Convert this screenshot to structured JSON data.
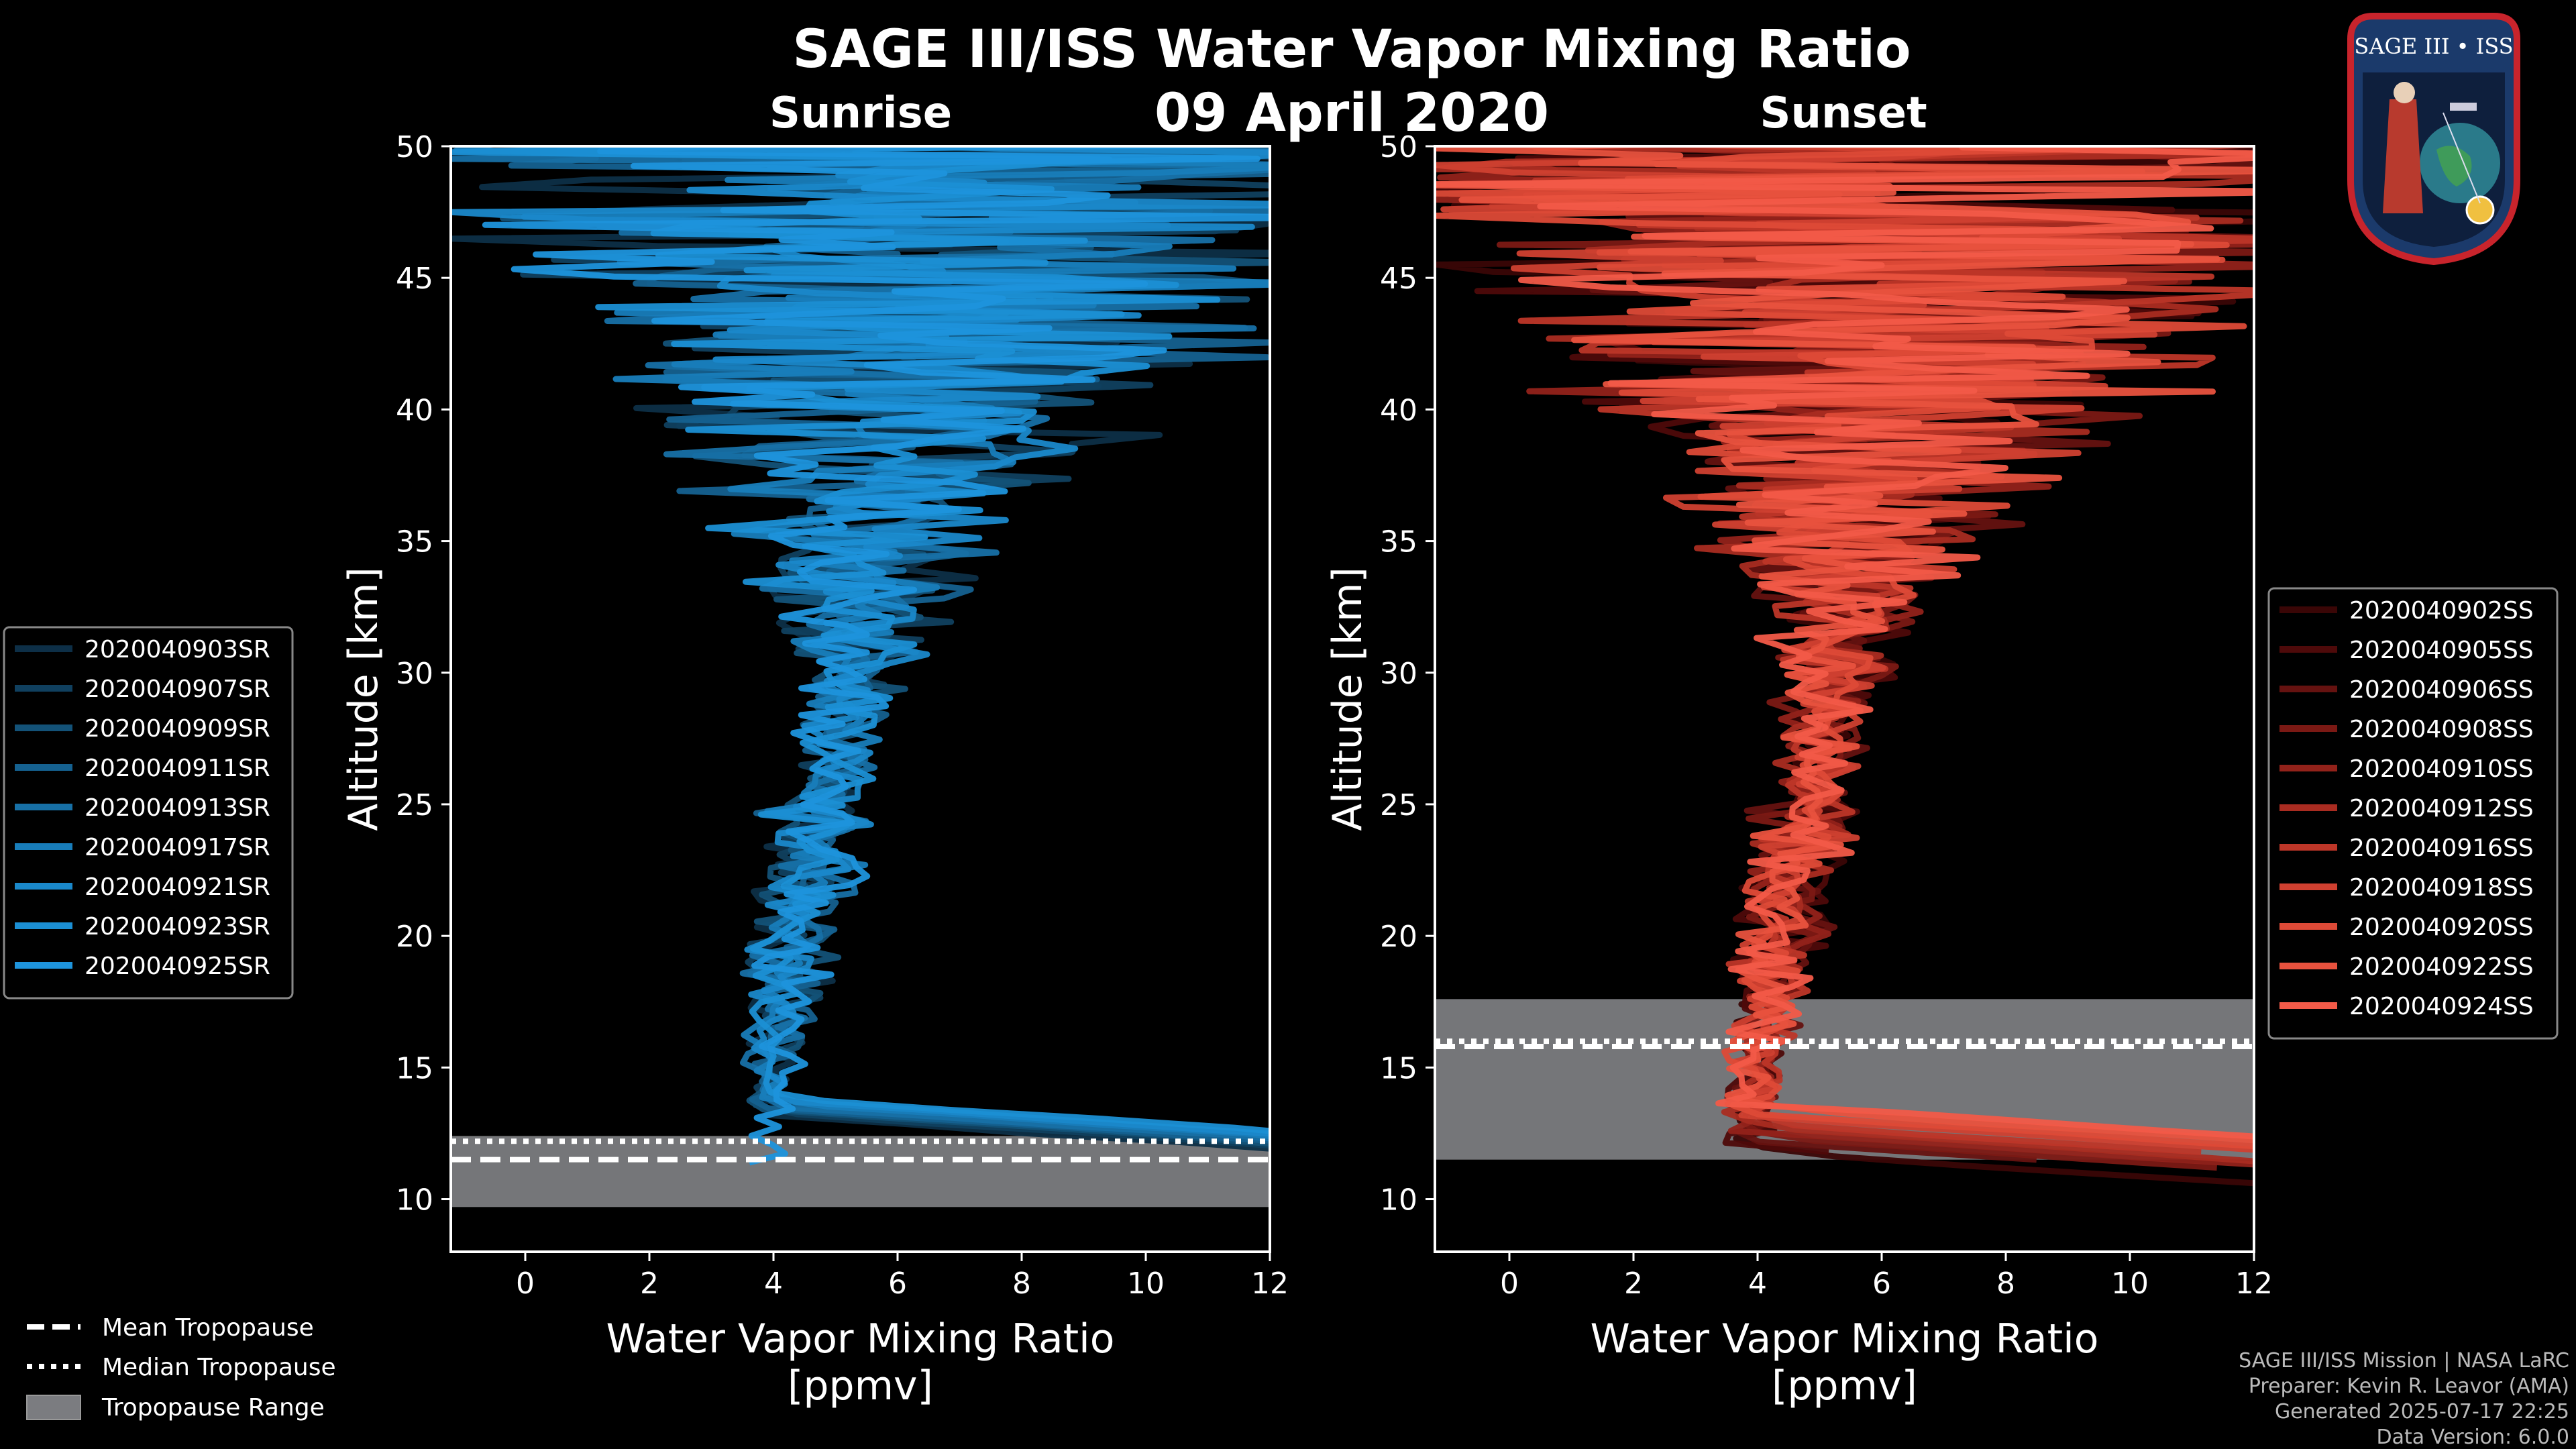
{
  "header": {
    "title": "SAGE III/ISS Water Vapor Mixing Ratio",
    "date": "09 April 2020"
  },
  "logo": {
    "label": "SAGE III • ISS"
  },
  "footer": {
    "line1": "SAGE III/ISS Mission | NASA LaRC",
    "line2": "Preparer: Kevin R. Leavor (AMA)",
    "line3": "Generated 2025-07-17 22:25",
    "line4": "Data Version: 6.0.0"
  },
  "tropo_legend": {
    "mean": "Mean Tropopause",
    "median": "Median Tropopause",
    "range": "Tropopause Range"
  },
  "colors": {
    "sunrise": "#1e90d8",
    "sunset": "#f25a48",
    "range": "#7b7c80"
  },
  "chart_data": [
    {
      "type": "line",
      "id": "sunrise",
      "title": "Sunrise",
      "xlabel": "Water Vapor Mixing Ratio\n[ppmv]",
      "ylabel": "Altitude [km]",
      "xlim": [
        -1.2,
        12
      ],
      "ylim": [
        8,
        50
      ],
      "xticks": [
        0,
        2,
        4,
        6,
        8,
        10,
        12
      ],
      "yticks": [
        10,
        15,
        20,
        25,
        30,
        35,
        40,
        45,
        50
      ],
      "legend_position": "left",
      "tropopause": {
        "mean": 11.5,
        "median": 12.2,
        "range": [
          9.7,
          12.4
        ]
      },
      "series": [
        {
          "name": "2020040903SR",
          "color": "#0d2f47"
        },
        {
          "name": "2020040907SR",
          "color": "#10405f"
        },
        {
          "name": "2020040909SR",
          "color": "#135278"
        },
        {
          "name": "2020040911SR",
          "color": "#156190"
        },
        {
          "name": "2020040913SR",
          "color": "#1770a6"
        },
        {
          "name": "2020040917SR",
          "color": "#187dba"
        },
        {
          "name": "2020040921SR",
          "color": "#1a88ca"
        },
        {
          "name": "2020040923SR",
          "color": "#1b8fd4"
        },
        {
          "name": "2020040925SR",
          "color": "#1e94dc"
        }
      ]
    },
    {
      "type": "line",
      "id": "sunset",
      "title": "Sunset",
      "xlabel": "Water Vapor Mixing Ratio\n[ppmv]",
      "ylabel": "Altitude [km]",
      "xlim": [
        -1.2,
        12
      ],
      "ylim": [
        8,
        50
      ],
      "xticks": [
        0,
        2,
        4,
        6,
        8,
        10,
        12
      ],
      "yticks": [
        10,
        15,
        20,
        25,
        30,
        35,
        40,
        45,
        50
      ],
      "legend_position": "right",
      "tropopause": {
        "mean": 15.8,
        "median": 16.0,
        "range": [
          11.5,
          17.6
        ]
      },
      "series": [
        {
          "name": "2020040902SS",
          "color": "#3a0606"
        },
        {
          "name": "2020040905SS",
          "color": "#4e0a0a"
        },
        {
          "name": "2020040906SS",
          "color": "#651210"
        },
        {
          "name": "2020040908SS",
          "color": "#7b1914"
        },
        {
          "name": "2020040910SS",
          "color": "#92221a"
        },
        {
          "name": "2020040912SS",
          "color": "#a92c21"
        },
        {
          "name": "2020040916SS",
          "color": "#bd3628"
        },
        {
          "name": "2020040918SS",
          "color": "#cf4030"
        },
        {
          "name": "2020040920SS",
          "color": "#dd4a37"
        },
        {
          "name": "2020040922SS",
          "color": "#e8523e"
        },
        {
          "name": "2020040924SS",
          "color": "#f25a48"
        }
      ]
    }
  ]
}
